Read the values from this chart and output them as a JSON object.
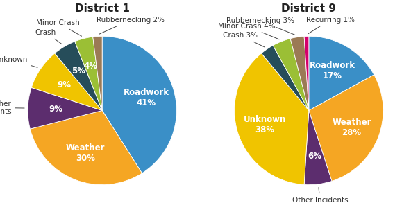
{
  "district1": {
    "title": "District 1",
    "values": [
      41,
      30,
      9,
      9,
      5,
      4,
      2
    ],
    "colors": [
      "#3A8FC7",
      "#F5A623",
      "#5C2D6E",
      "#F0C400",
      "#264D5A",
      "#9BBF35",
      "#9B7A55"
    ],
    "inner_labels": [
      "Roadwork\n41%",
      "Weather\n30%",
      "9%",
      "9%",
      "5%",
      "4%",
      ""
    ],
    "outer_labels": [
      "",
      "",
      "Other\nIncidents",
      "Unknown",
      "Crash",
      "Minor Crash",
      "Rubbernecking 2%"
    ],
    "outer_label_ha": [
      "center",
      "center",
      "right",
      "right",
      "right",
      "right",
      "left"
    ],
    "startangle": 90
  },
  "district9": {
    "title": "District 9",
    "values": [
      17,
      28,
      6,
      38,
      3,
      4,
      3,
      1
    ],
    "colors": [
      "#3A8FC7",
      "#F5A623",
      "#5C2D6E",
      "#F0C400",
      "#264D5A",
      "#9BBF35",
      "#9B7A55",
      "#D4006B"
    ],
    "inner_labels": [
      "Roadwork\n17%",
      "Weather\n28%",
      "6%",
      "Unknown\n38%",
      "",
      "",
      "",
      ""
    ],
    "outer_labels": [
      "",
      "",
      "Other Incidents",
      "",
      "Crash 3%",
      "Minor Crash 4%",
      "Rubbernecking 3%",
      "Recurring 1%"
    ],
    "outer_label_ha": [
      "center",
      "center",
      "center",
      "center",
      "right",
      "right",
      "right",
      "left"
    ],
    "startangle": 90
  },
  "bg_color": "#FFFFFF",
  "title_fontsize": 11,
  "inner_fontsize": 8.5,
  "outer_fontsize": 7.5
}
